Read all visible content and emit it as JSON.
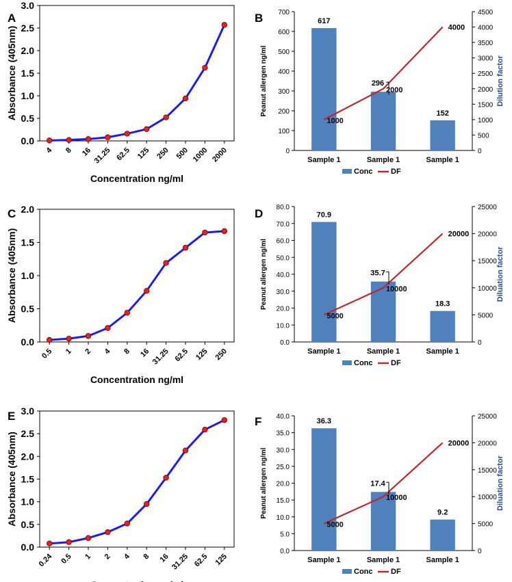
{
  "chart_data": [
    {
      "panel": "A",
      "type": "line",
      "xlabel": "Concentration ng/ml",
      "ylabel": "Absorbance (405nm)",
      "categories": [
        "4",
        "8",
        "16",
        "31.25",
        "62.5",
        "125",
        "250",
        "500",
        "1000",
        "2000"
      ],
      "values": [
        0.01,
        0.02,
        0.04,
        0.08,
        0.16,
        0.26,
        0.52,
        0.94,
        1.62,
        2.57
      ],
      "ylim": [
        0,
        3
      ],
      "yticks": [
        "0.0",
        "0.5",
        "1.0",
        "1.5",
        "2.0",
        "2.5",
        "3.0"
      ],
      "line_color": "#1a1aff",
      "marker_color": "#e8211c"
    },
    {
      "panel": "B",
      "type": "bar",
      "categories": [
        "Sample 1",
        "Sample 1",
        "Sample 1"
      ],
      "series": [
        {
          "name": "Conc",
          "values": [
            617,
            296,
            152
          ],
          "labels": [
            "617",
            "296",
            "152"
          ],
          "color": "#4f81bd",
          "axis": "left"
        },
        {
          "name": "DF",
          "values": [
            1000,
            2000,
            4000
          ],
          "labels": [
            "1000",
            "2000",
            "4000"
          ],
          "color": "#c0262a",
          "axis": "right"
        }
      ],
      "ylabel": "Peanut allergen ng/ml",
      "y2label": "Dilution factor",
      "ylim": [
        0,
        700
      ],
      "yticks": [
        "0",
        "100",
        "200",
        "300",
        "400",
        "500",
        "600",
        "700"
      ],
      "y2lim": [
        0,
        4500
      ],
      "y2ticks": [
        "0",
        "500",
        "1000",
        "1500",
        "2000",
        "2500",
        "3000",
        "3500",
        "4000",
        "4500"
      ],
      "legend": [
        "Conc",
        "DF"
      ]
    },
    {
      "panel": "C",
      "type": "line",
      "xlabel": "Concentration ng/ml",
      "ylabel": "Absorbance (405nm)",
      "categories": [
        "0.5",
        "1",
        "2",
        "4",
        "8",
        "16",
        "31.25",
        "62.5",
        "125",
        "250"
      ],
      "values": [
        0.03,
        0.05,
        0.09,
        0.21,
        0.44,
        0.77,
        1.19,
        1.42,
        1.65,
        1.67
      ],
      "ylim": [
        0,
        2
      ],
      "yticks": [
        "0.0",
        "0.5",
        "1.0",
        "1.5",
        "2.0"
      ],
      "line_color": "#1a1aff",
      "marker_color": "#e8211c"
    },
    {
      "panel": "D",
      "type": "bar",
      "categories": [
        "Sample 1",
        "Sample 1",
        "Sample 1"
      ],
      "series": [
        {
          "name": "Conc",
          "values": [
            70.9,
            35.7,
            18.3
          ],
          "labels": [
            "70.9",
            "35.7",
            "18.3"
          ],
          "color": "#4f81bd",
          "axis": "left"
        },
        {
          "name": "DF",
          "values": [
            5000,
            10000,
            20000
          ],
          "labels": [
            "5000",
            "10000",
            "20000"
          ],
          "color": "#c0262a",
          "axis": "right"
        }
      ],
      "ylabel": "Peanut allergen ng/ml",
      "y2label": "Diluation factor",
      "ylim": [
        0,
        80
      ],
      "yticks": [
        "0.0",
        "10.0",
        "20.0",
        "30.0",
        "40.0",
        "50.0",
        "60.0",
        "70.0",
        "80.0"
      ],
      "y2lim": [
        0,
        25000
      ],
      "y2ticks": [
        "0",
        "5000",
        "10000",
        "15000",
        "20000",
        "25000"
      ],
      "legend": [
        "Conc",
        "DF"
      ]
    },
    {
      "panel": "E",
      "type": "line",
      "xlabel": "Concentration ng/ml",
      "ylabel": "Absorbance (405nm)",
      "categories": [
        "0.24",
        "0.5",
        "1",
        "2",
        "4",
        "8",
        "16",
        "31.25",
        "62.5",
        "125"
      ],
      "values": [
        0.08,
        0.11,
        0.2,
        0.33,
        0.52,
        0.95,
        1.53,
        2.13,
        2.59,
        2.8
      ],
      "ylim": [
        0,
        3
      ],
      "yticks": [
        "0.0",
        "0.5",
        "1.0",
        "1.5",
        "2.0",
        "2.5",
        "3.0"
      ],
      "line_color": "#1a1aff",
      "marker_color": "#e8211c"
    },
    {
      "panel": "F",
      "type": "bar",
      "categories": [
        "Sample 1",
        "Sample 1",
        "Sample 1"
      ],
      "series": [
        {
          "name": "Conc",
          "values": [
            36.3,
            17.4,
            9.2
          ],
          "labels": [
            "36.3",
            "17.4",
            "9.2"
          ],
          "color": "#4f81bd",
          "axis": "left"
        },
        {
          "name": "DF",
          "values": [
            5000,
            10000,
            20000
          ],
          "labels": [
            "5000",
            "10000",
            "20000"
          ],
          "color": "#c0262a",
          "axis": "right"
        }
      ],
      "ylabel": "Peanut allergen ng/ml",
      "y2label": "Diluation factor",
      "ylim": [
        0,
        40
      ],
      "yticks": [
        "0.0",
        "5.0",
        "10.0",
        "15.0",
        "20.0",
        "25.0",
        "30.0",
        "35.0",
        "40.0"
      ],
      "y2lim": [
        0,
        25000
      ],
      "y2ticks": [
        "0",
        "5000",
        "10000",
        "15000",
        "20000",
        "25000"
      ],
      "legend": [
        "Conc",
        "DF"
      ]
    }
  ]
}
